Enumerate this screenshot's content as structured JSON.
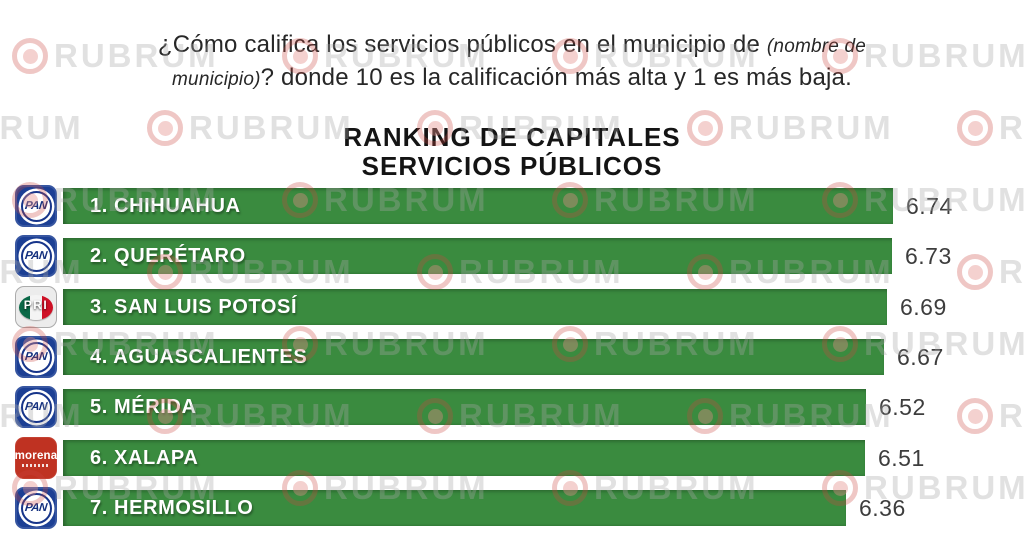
{
  "watermark": {
    "brand": "RUBRUM"
  },
  "question": {
    "line1_regular": "¿Cómo califica los servicios públicos en el municipio de ",
    "line1_italic": "(nombre de",
    "line2_italic": "municipio)",
    "line2_regular": "? donde 10 es la calificación más alta y 1 es más baja."
  },
  "title": {
    "line1": "RANKING DE CAPITALES",
    "line2": "SERVICIOS PÚBLICOS"
  },
  "party_logos": {
    "PAN": {
      "label": "PAN"
    },
    "PRI": {
      "label": "PRI"
    },
    "MORENA": {
      "label": "morena"
    }
  },
  "colors": {
    "bar_green": "#3a8b3f",
    "pan_blue": "#1c3f94",
    "pri_green": "#0a6847",
    "pri_red": "#ce1126",
    "morena_red": "#bf3222",
    "value_text": "#3d3d3d",
    "watermark_gray": "#a8a8a8",
    "watermark_red": "#cb4640"
  },
  "chart_data": {
    "type": "bar",
    "orientation": "horizontal",
    "title": "RANKING DE CAPITALES",
    "subtitle": "SERVICIOS PÚBLICOS",
    "categories": [
      "1. CHIHUAHUA",
      "2. QUERÉTARO",
      "3. SAN LUIS POTOSÍ",
      "4. AGUASCALIENTES",
      "5. MÉRIDA",
      "6. XALAPA",
      "7. HERMOSILLO"
    ],
    "parties": [
      "PAN",
      "PAN",
      "PRI",
      "PAN",
      "PAN",
      "MORENA",
      "PAN"
    ],
    "values": [
      6.74,
      6.73,
      6.69,
      6.67,
      6.52,
      6.51,
      6.36
    ],
    "value_labels": [
      "6.74",
      "6.73",
      "6.69",
      "6.67",
      "6.52",
      "6.51",
      "6.36"
    ],
    "value_range": [
      0,
      6.74
    ],
    "grid": false,
    "legend": false,
    "data_labels_position": "right-of-bar"
  }
}
